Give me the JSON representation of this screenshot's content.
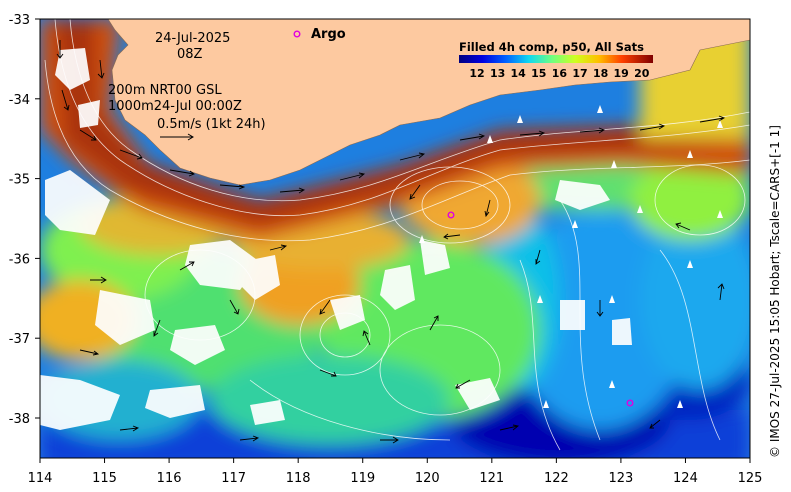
{
  "date_label": "24-Jul-2025",
  "time_label": "08Z",
  "argo_label": "Argo",
  "depth_line_1": "200m  NRT00 GSL",
  "depth_line_2": "1000m24-Jul 00:00Z",
  "velocity_scale": "0.5m/s (1kt 24h)",
  "colorbar_title": "Filled 4h comp, p50, All Sats",
  "colorbar_ticks": [
    "12",
    "13",
    "14",
    "15",
    "16",
    "17",
    "18",
    "19",
    "20"
  ],
  "colorbar_colors": [
    "#00007f",
    "#0000e0",
    "#0040ff",
    "#00a0ff",
    "#10e8e8",
    "#60ff90",
    "#b0ff40",
    "#ffe000",
    "#ff9000",
    "#ff3000",
    "#c00000",
    "#7f0000"
  ],
  "x_ticks": [
    "114",
    "115",
    "116",
    "117",
    "118",
    "119",
    "120",
    "121",
    "122",
    "123",
    "124",
    "125"
  ],
  "y_ticks": [
    "-33",
    "-34",
    "-35",
    "-36",
    "-37",
    "-38"
  ],
  "credit": "© IMOS 27-Jul-2025 15:05 Hobart; Tscale=CARS+[-1 1]",
  "colors": {
    "land": "#fdc9a0",
    "argo_marker": "#e000e0",
    "cloud": "#ffffff"
  }
}
